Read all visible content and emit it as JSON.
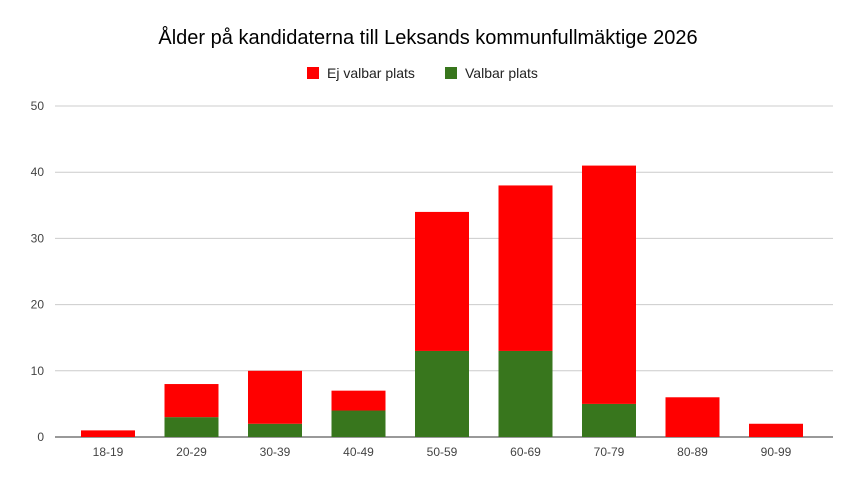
{
  "chart_data": {
    "type": "bar",
    "stacked": true,
    "title": "Ålder på kandidaterna till Leksands kommunfullmäktige 2026",
    "xlabel": "",
    "ylabel": "",
    "ylim": [
      0,
      50
    ],
    "yticks": [
      "0",
      "10",
      "20",
      "30",
      "40",
      "50"
    ],
    "grid": true,
    "legend_position": "top",
    "categories": [
      "18-19",
      "20-29",
      "30-39",
      "40-49",
      "50-59",
      "60-69",
      "70-79",
      "80-89",
      "90-99"
    ],
    "series": [
      {
        "name": "Valbar plats",
        "color": "#38761d",
        "values": [
          0,
          3,
          2,
          4,
          13,
          13,
          5,
          0,
          0
        ]
      },
      {
        "name": "Ej valbar plats",
        "color": "#ff0000",
        "values": [
          1,
          5,
          8,
          3,
          21,
          25,
          36,
          6,
          2
        ]
      }
    ],
    "legend_order": [
      1,
      0
    ]
  }
}
